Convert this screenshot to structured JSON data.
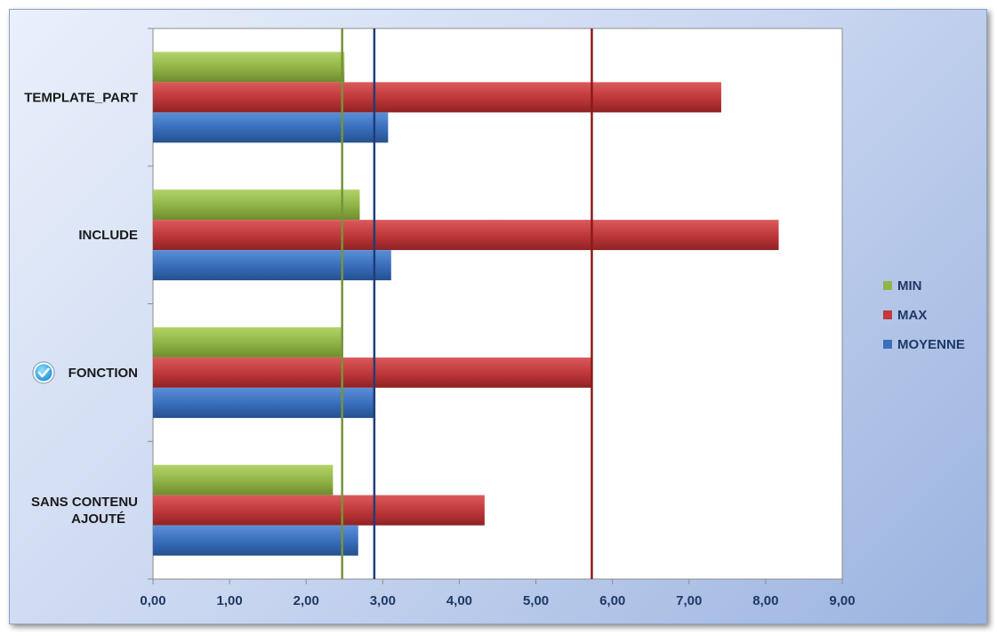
{
  "chart_data": {
    "type": "bar",
    "orientation": "horizontal",
    "categories": [
      "TEMPLATE_PART",
      "INCLUDE",
      "FONCTION",
      "SANS CONTENU AJOUTÉ"
    ],
    "category_lines": [
      [
        "TEMPLATE_PART"
      ],
      [
        "INCLUDE"
      ],
      [
        "FONCTION"
      ],
      [
        "SANS CONTENU",
        "AJOUTÉ"
      ]
    ],
    "highlighted_category": "FONCTION",
    "series": [
      {
        "name": "MIN",
        "color": "#92b547",
        "values": [
          2.5,
          2.7,
          2.48,
          2.35
        ]
      },
      {
        "name": "MAX",
        "color": "#c0393b",
        "values": [
          7.42,
          8.17,
          5.73,
          4.33
        ]
      },
      {
        "name": "MOYENNE",
        "color": "#3a6fbd",
        "values": [
          3.07,
          3.11,
          2.88,
          2.68
        ]
      }
    ],
    "reference_lines": [
      {
        "value": 2.47,
        "color": "#77933c"
      },
      {
        "value": 2.89,
        "color": "#1f3d7a"
      },
      {
        "value": 5.73,
        "color": "#8b1a1a"
      }
    ],
    "xlim": [
      0,
      9
    ],
    "xticks": [
      "0,00",
      "1,00",
      "2,00",
      "3,00",
      "4,00",
      "5,00",
      "6,00",
      "7,00",
      "8,00",
      "9,00"
    ],
    "legend_position": "right",
    "grid": false,
    "icons": {
      "highlight": "check-circle-icon"
    }
  }
}
